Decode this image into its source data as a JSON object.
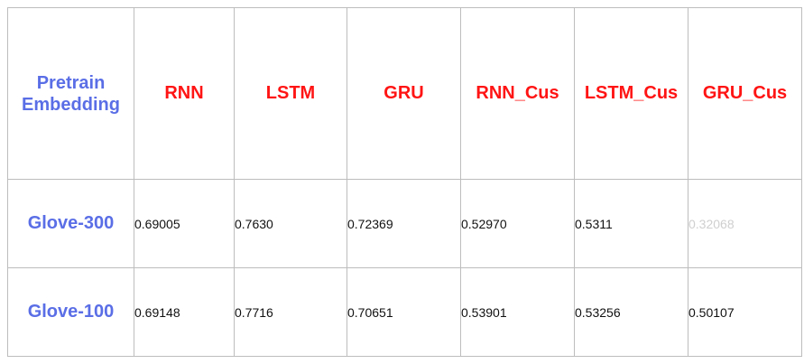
{
  "table": {
    "corner_label": {
      "line1": "Pretrain",
      "line2": "Embedding"
    },
    "columns": [
      "RNN",
      "LSTM",
      "GRU",
      "RNN_Cus",
      "LSTM_Cus",
      "GRU_Cus"
    ],
    "rows": [
      {
        "label": "Glove-300",
        "values": [
          "0.69005",
          "0.7630",
          "0.72369",
          "0.52970",
          "0.5311",
          "0.32068"
        ]
      },
      {
        "label": "Glove-100",
        "values": [
          "0.69148",
          "0.7716",
          "0.70651",
          "0.53901",
          "0.53256",
          "0.50107"
        ]
      }
    ]
  },
  "colors": {
    "header_accent": "#5a6ee6",
    "model_header": "#ff1414",
    "faded_value": "#cfcfcf"
  }
}
